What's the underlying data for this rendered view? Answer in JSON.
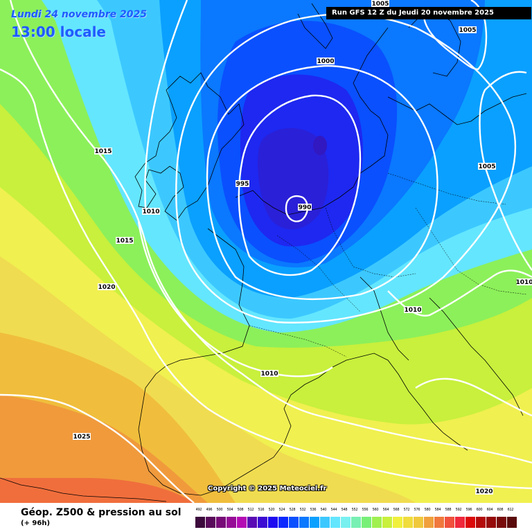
{
  "header": {
    "date": "Lundi 24 novembre 2025",
    "time": "13:00 locale",
    "run_info": "Run GFS 12 Z du Jeudi 20 novembre 2025"
  },
  "copyright": "Copyright © 2025 Meteociel.fr",
  "footer": {
    "title": "Géop. Z500 & pression au sol",
    "subtitle": "(+ 96h)"
  },
  "pressure_labels": [
    {
      "id": "lbl-1005-top",
      "text": "1005"
    },
    {
      "id": "lbl-1005-ne",
      "text": "1005"
    },
    {
      "id": "lbl-1000",
      "text": "1000"
    },
    {
      "id": "lbl-1005-e",
      "text": "1005"
    },
    {
      "id": "lbl-1015-w",
      "text": "1015"
    },
    {
      "id": "lbl-995",
      "text": "995"
    },
    {
      "id": "lbl-990",
      "text": "990"
    },
    {
      "id": "lbl-1010-w",
      "text": "1010"
    },
    {
      "id": "lbl-1015-sw",
      "text": "1015"
    },
    {
      "id": "lbl-1020-w",
      "text": "1020"
    },
    {
      "id": "lbl-1010-c",
      "text": "1010"
    },
    {
      "id": "lbl-1010-e",
      "text": "1010"
    },
    {
      "id": "lbl-1010-s",
      "text": "1010"
    },
    {
      "id": "lbl-1025",
      "text": "1025"
    },
    {
      "id": "lbl-1020-se",
      "text": "1020"
    }
  ],
  "scale": {
    "values": [
      "492",
      "496",
      "500",
      "504",
      "508",
      "512",
      "516",
      "520",
      "524",
      "528",
      "532",
      "536",
      "540",
      "544",
      "548",
      "552",
      "556",
      "560",
      "564",
      "568",
      "572",
      "576",
      "580",
      "584",
      "588",
      "592",
      "596",
      "600",
      "604",
      "608",
      "612"
    ],
    "colors": [
      "#3c0a3c",
      "#5a0a5a",
      "#780a78",
      "#960a96",
      "#b40ab4",
      "#5a0ab4",
      "#3c0ad2",
      "#1e0af0",
      "#0a28ff",
      "#0a50ff",
      "#0a78ff",
      "#0aa0ff",
      "#3cc8ff",
      "#64e6ff",
      "#78f0f0",
      "#78f0b4",
      "#78f078",
      "#a0f050",
      "#c8f03c",
      "#f0f03c",
      "#f0dc3c",
      "#f0c83c",
      "#f0a03c",
      "#f0783c",
      "#f0503c",
      "#f0283c",
      "#dc0a0a",
      "#b40a0a",
      "#960a0a",
      "#780a0a",
      "#5a0a0a"
    ]
  }
}
